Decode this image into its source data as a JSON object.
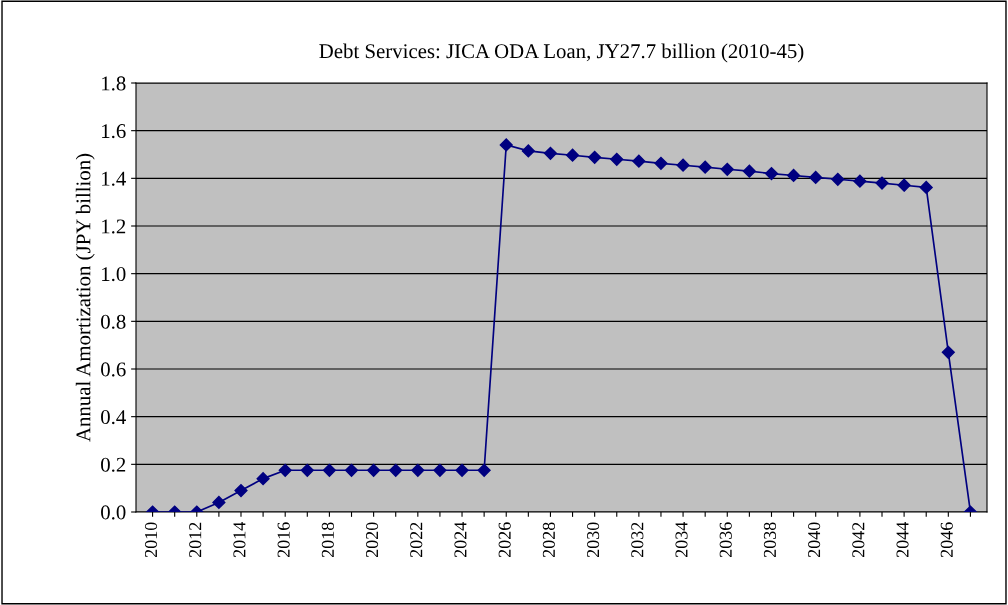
{
  "chart_data": {
    "type": "line",
    "title": "Debt Services: JICA ODA Loan, JY27.7 billion (2010-45)",
    "ylabel": "Annual Amortization (JPY billion)",
    "categories": [
      "2010",
      null,
      "2012",
      null,
      "2014",
      null,
      "2016",
      null,
      "2018",
      null,
      "2020",
      null,
      "2022",
      null,
      "2024",
      null,
      "2026",
      null,
      "2028",
      null,
      "2030",
      null,
      "2032",
      null,
      "2034",
      null,
      "2036",
      null,
      "2038",
      null,
      "2040",
      null,
      "2042",
      null,
      "2044",
      null,
      "2046",
      null
    ],
    "series": [
      {
        "color": "#000080",
        "values": [
          0,
          0,
          0,
          0.04,
          0.09,
          0.14,
          0.175,
          0.175,
          0.175,
          0.175,
          0.175,
          0.175,
          0.175,
          0.175,
          0.175,
          0.175,
          1.54,
          1.515,
          1.505,
          1.497,
          1.488,
          1.48,
          1.472,
          1.463,
          1.455,
          1.447,
          1.438,
          1.43,
          1.42,
          1.412,
          1.404,
          1.396,
          1.388,
          1.38,
          1.371,
          1.362,
          0.67,
          0
        ]
      }
    ],
    "ylim": [
      0,
      1.8
    ],
    "yticks": [
      {
        "value": 0,
        "label": "0.0"
      },
      {
        "value": 0.2,
        "label": "0.2"
      },
      {
        "value": 0.4,
        "label": "0.4"
      },
      {
        "value": 0.6,
        "label": "0.6"
      },
      {
        "value": 0.8,
        "label": "0.8"
      },
      {
        "value": 1.0,
        "label": "1.0"
      },
      {
        "value": 1.2,
        "label": "1.2"
      },
      {
        "value": 1.4,
        "label": "1.4"
      },
      {
        "value": 1.6,
        "label": "1.6"
      },
      {
        "value": 1.8,
        "label": "1.8"
      }
    ],
    "grid": "y",
    "marker": "diamond",
    "line_style": "solid",
    "legend": false
  }
}
